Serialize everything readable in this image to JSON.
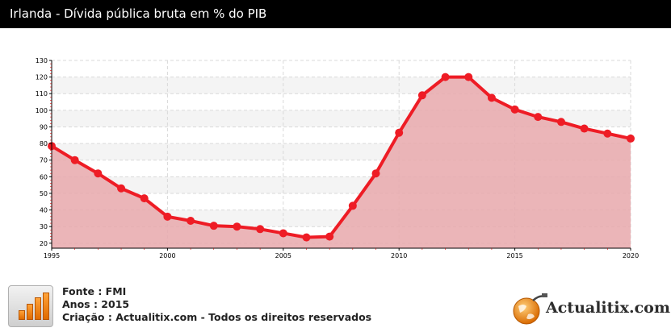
{
  "header": {
    "title": "Irlanda - Dívida pública bruta em % do PIB"
  },
  "chart_data": {
    "type": "area",
    "title": "Irlanda - Dívida pública bruta em % do PIB",
    "xlabel": "",
    "ylabel": "",
    "xlim": [
      1995,
      2020
    ],
    "ylim": [
      17,
      130
    ],
    "x_ticks": [
      1995,
      2000,
      2005,
      2010,
      2015,
      2020
    ],
    "y_ticks": [
      20,
      30,
      40,
      50,
      60,
      70,
      80,
      90,
      100,
      110,
      120,
      130
    ],
    "grid": true,
    "legend": "none",
    "x": [
      1995,
      1996,
      1997,
      1998,
      1999,
      2000,
      2001,
      2002,
      2003,
      2004,
      2005,
      2006,
      2007,
      2008,
      2009,
      2010,
      2011,
      2012,
      2013,
      2014,
      2015,
      2016,
      2017,
      2018,
      2019,
      2020
    ],
    "values": [
      78.5,
      70,
      62,
      53,
      47,
      36,
      33.5,
      30.5,
      30,
      28.5,
      26,
      23.5,
      24,
      42.5,
      62,
      86.5,
      109,
      120,
      120,
      107.5,
      100.5,
      96,
      93,
      89,
      86,
      83
    ],
    "line_color": "#ee1c25",
    "fill_color": "#e8a8ab"
  },
  "footer": {
    "source": "Fonte : FMI",
    "years": "Anos : 2015",
    "creation": "Criação : Actualitix.com - Todos os direitos reservados",
    "logo_text": "Actualitix.com",
    "icon_name": "bar-chart-icon"
  }
}
